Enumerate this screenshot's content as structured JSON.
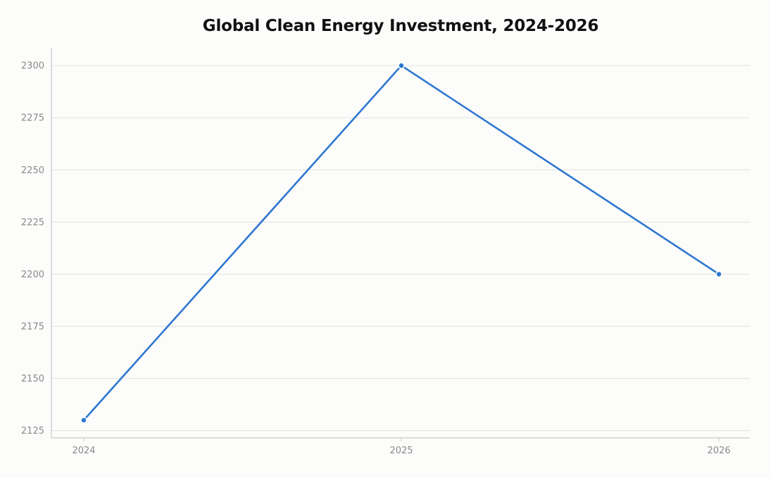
{
  "chart_data": {
    "type": "line",
    "title": "Global Clean Energy Investment, 2024-2026",
    "xlabel": "",
    "ylabel": "",
    "x": [
      "2024",
      "2025",
      "2026"
    ],
    "series": [
      {
        "values": [
          2130,
          2300,
          2200
        ],
        "color": "#2e77d0"
      }
    ],
    "yticks": [
      2125,
      2150,
      2175,
      2200,
      2225,
      2250,
      2275,
      2300
    ],
    "ylim": [
      2121.5,
      2308.5
    ],
    "grid": true,
    "legend": "none",
    "colors": {
      "background": "#fcfcfb",
      "grid": "#e2e2e2",
      "axis": "#c8c8c8",
      "tick_text": "#8a8a8a",
      "line": "#2e77d0"
    }
  }
}
